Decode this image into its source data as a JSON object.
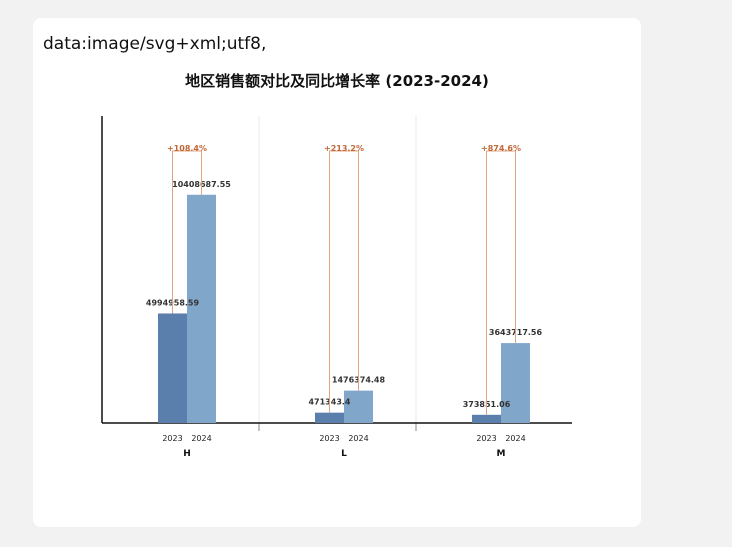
{
  "header": {
    "data_uri_text": "data:image/svg+xml;utf8,"
  },
  "chart_data": {
    "type": "bar",
    "title": "地区销售额对比及同比增长率 (2023-2024)",
    "categories": [
      "H",
      "L",
      "M"
    ],
    "series": [
      {
        "name": "2023",
        "values": [
          4994958.59,
          471343.4,
          373851.06
        ]
      },
      {
        "name": "2024",
        "values": [
          10408687.55,
          1476374.48,
          3643717.56
        ]
      }
    ],
    "value_labels": {
      "2023": [
        "4994958.59",
        "471343.4",
        "373851.06"
      ],
      "2024": [
        "10408687.55",
        "1476374.48",
        "3643717.56"
      ]
    },
    "growth_labels": [
      "+108.4%",
      "+213.2%",
      "+874.6%"
    ],
    "ylim": [
      0,
      14000000
    ],
    "y_axis_ticks": false,
    "grid": "vertical separators between categories",
    "colors": {
      "bar_2023": "#5b7fad",
      "bar_2024": "#80a6c9",
      "growth_bracket": "#e2a47f",
      "growth_label": "#c0693a",
      "axis": "#111111",
      "separator": "#e8e8e8"
    }
  }
}
